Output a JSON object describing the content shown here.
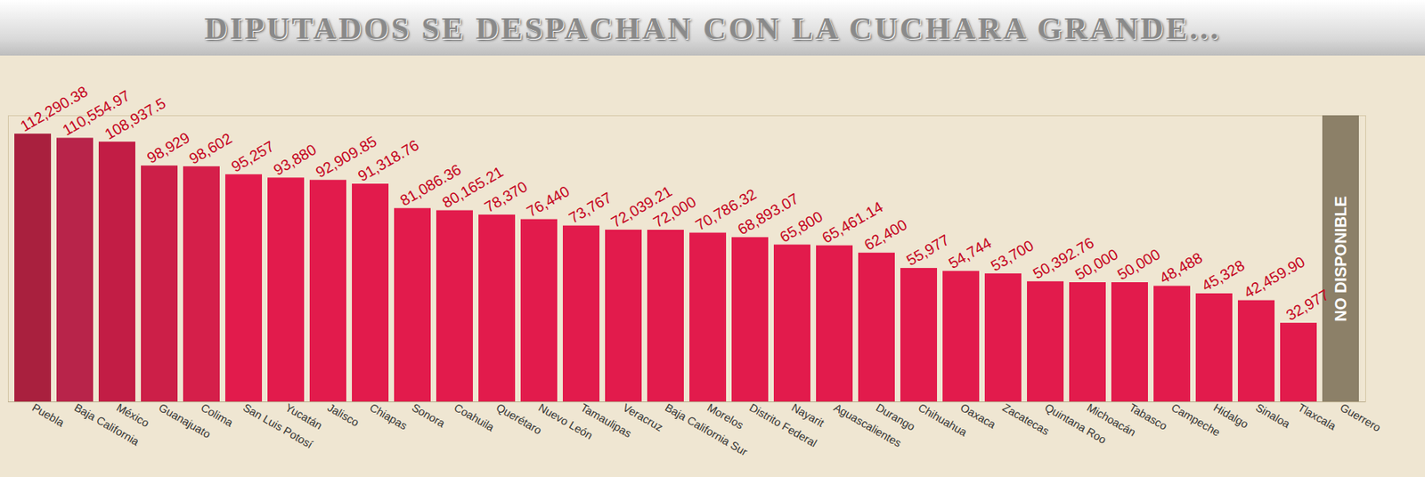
{
  "chart_data": {
    "type": "bar",
    "title": "DIPUTADOS SE DESPACHAN CON LA CUCHARA GRANDE...",
    "categories": [
      "Puebla",
      "Baja California",
      "México",
      "Guanajuato",
      "Colima",
      "San Luis Potosí",
      "Yucatán",
      "Jalisco",
      "Chiapas",
      "Sonora",
      "Coahuila",
      "Querétaro",
      "Nuevo León",
      "Tamaulipas",
      "Veracruz",
      "Baja California Sur",
      "Morelos",
      "Distrito Federal",
      "Nayarit",
      "Aguascalientes",
      "Durango",
      "Chihuahua",
      "Oaxaca",
      "Zacatecas",
      "Quintana Roo",
      "Michoacán",
      "Tabasco",
      "Campeche",
      "Hidalgo",
      "Sinaloa",
      "Tlaxcala",
      "Guerrero"
    ],
    "values": [
      112290.38,
      110554.97,
      108937.5,
      98929,
      98602,
      95257,
      93880,
      92909.85,
      91318.76,
      81086.36,
      80165.21,
      78370,
      76440,
      73767,
      72039.21,
      72000,
      70786.32,
      68893.07,
      65800,
      65461.14,
      62400,
      55977,
      54744,
      53700,
      50392.76,
      50000,
      50000,
      48488,
      45328,
      42459.9,
      32977,
      null
    ],
    "value_labels": [
      "112,290.38",
      "110,554.97",
      "108,937.5",
      "98,929",
      "98,602",
      "95,257",
      "93,880",
      "92,909.85",
      "91,318.76",
      "81,086.36",
      "80,165.21",
      "78,370",
      "76,440",
      "73,767",
      "72,039.21",
      "72,000",
      "70,786.32",
      "68,893.07",
      "65,800",
      "65,461.14",
      "62,400",
      "55,977",
      "54,744",
      "53,700",
      "50,392.76",
      "50,000",
      "50,000",
      "48,488",
      "45,328",
      "42,459.90",
      "32,977",
      null
    ],
    "colors": [
      "#a9203e",
      "#b8244a",
      "#c21d45",
      "#cc1f48",
      "#d51f4a",
      "#e21b4c",
      "#e21b4c",
      "#e21b4c",
      "#e21b4c",
      "#e21b4c",
      "#e21b4c",
      "#e21b4c",
      "#e21b4c",
      "#e21b4c",
      "#e21b4c",
      "#e21b4c",
      "#e21b4c",
      "#e21b4c",
      "#e21b4c",
      "#e21b4c",
      "#e21b4c",
      "#e21b4c",
      "#e21b4c",
      "#e21b4c",
      "#e21b4c",
      "#e21b4c",
      "#e21b4c",
      "#e21b4c",
      "#e21b4c",
      "#e21b4c",
      "#e21b4c",
      "#8c8068"
    ],
    "annotations": [
      {
        "category": "Guerrero",
        "text": "NO DISPONIBLE"
      }
    ],
    "ylim": [
      0,
      120000
    ],
    "data_labels": true,
    "tick_labels": "x",
    "grid": false
  }
}
